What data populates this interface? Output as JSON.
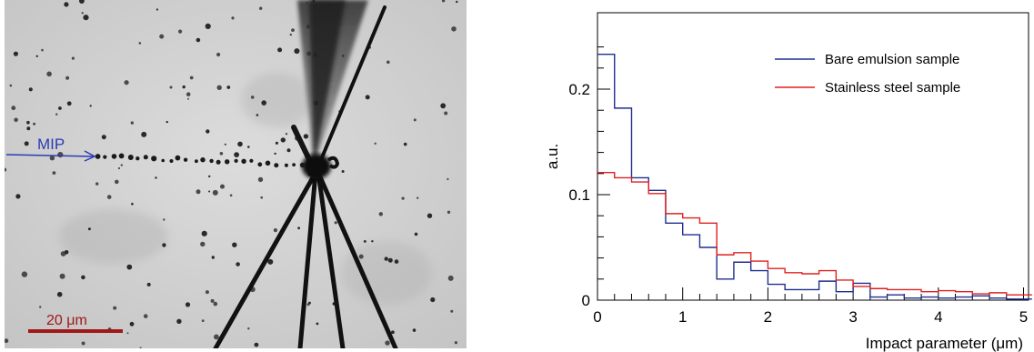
{
  "micrograph": {
    "mip_label": "MIP",
    "scale_bar_label": "20 μm",
    "colors": {
      "mip_arrow": "#2b3bb3",
      "scale_bar": "#a01818"
    }
  },
  "chart_data": {
    "type": "step",
    "title": "",
    "xlabel": "Impact parameter (μm)",
    "ylabel": "a.u.",
    "xlim": [
      0,
      5.1
    ],
    "ylim": [
      0,
      0.25
    ],
    "x_ticks": [
      0,
      1,
      2,
      3,
      4,
      5
    ],
    "x_tick_labels": [
      "0",
      "1",
      "2",
      "3",
      "4",
      "5"
    ],
    "y_ticks": [
      0,
      0.1,
      0.2
    ],
    "y_tick_labels": [
      "0",
      "0.1",
      "0.2"
    ],
    "grid": false,
    "legend_position": "top-right",
    "bin_edges": [
      0,
      0.2,
      0.4,
      0.6,
      0.8,
      1.0,
      1.2,
      1.4,
      1.6,
      1.8,
      2.0,
      2.2,
      2.4,
      2.6,
      2.8,
      3.0,
      3.2,
      3.4,
      3.6,
      3.8,
      4.0,
      4.2,
      4.4,
      4.6,
      4.8,
      5.0,
      5.1
    ],
    "series": [
      {
        "name": "Bare emulsion sample",
        "color": "#1f2f8f",
        "values": [
          0.233,
          0.182,
          0.116,
          0.104,
          0.073,
          0.062,
          0.05,
          0.02,
          0.036,
          0.028,
          0.015,
          0.01,
          0.01,
          0.018,
          0.008,
          0.016,
          0.003,
          0.005,
          0.002,
          0.003,
          0.002,
          0.003,
          0.004,
          0.002,
          0.001,
          0.001
        ]
      },
      {
        "name": "Stainless steel sample",
        "color": "#e02020",
        "values": [
          0.121,
          0.116,
          0.112,
          0.101,
          0.082,
          0.078,
          0.073,
          0.043,
          0.045,
          0.037,
          0.03,
          0.026,
          0.025,
          0.028,
          0.019,
          0.013,
          0.011,
          0.01,
          0.01,
          0.008,
          0.009,
          0.008,
          0.006,
          0.007,
          0.005,
          0.005
        ]
      }
    ]
  }
}
